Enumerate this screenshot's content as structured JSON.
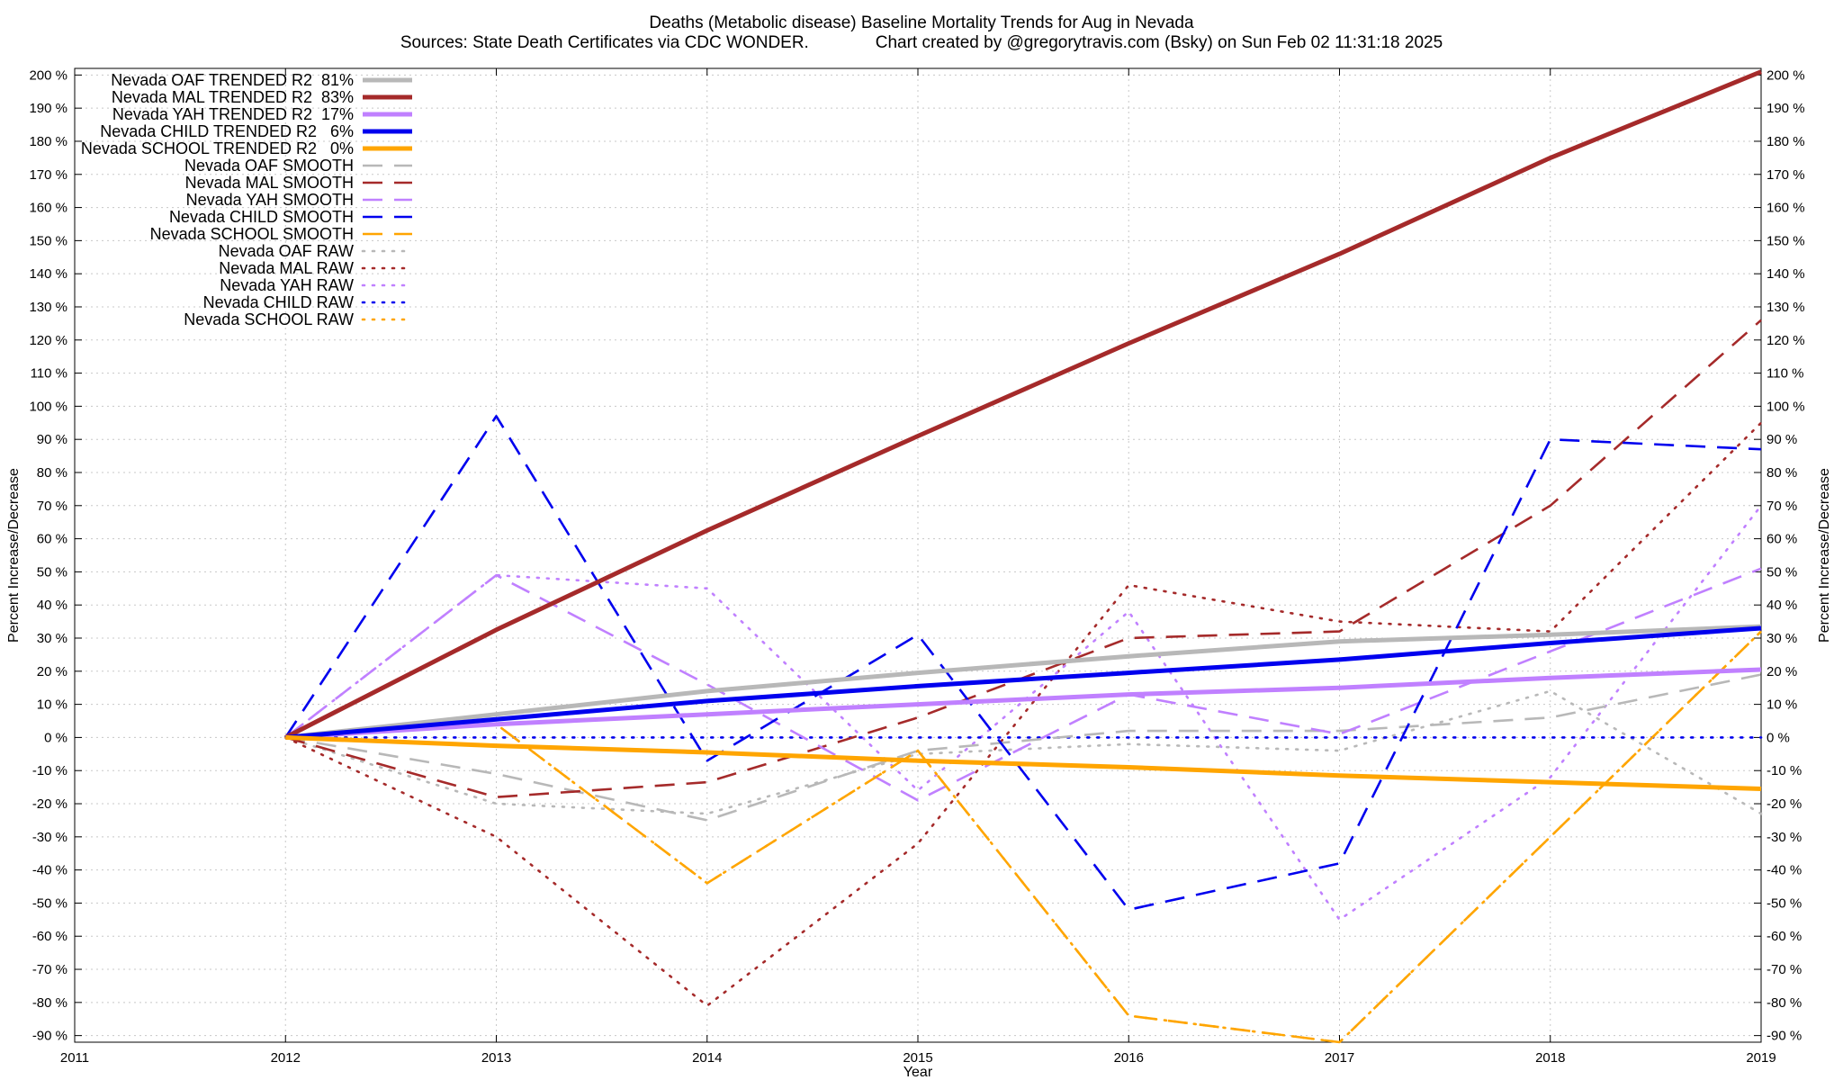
{
  "chart_data": {
    "type": "line",
    "title": "Deaths (Metabolic disease)  Baseline Mortality Trends for Aug in Nevada",
    "subtitle": "Sources: State Death Certificates via CDC WONDER.              Chart created by @gregorytravis.com (Bsky) on Sun Feb 02 11:31:18 2025",
    "xlabel": "Year",
    "ylabel": "Percent Increase/Decrease",
    "y2label": "Percent Increase/Decrease",
    "xlim": [
      2011,
      2019
    ],
    "ylim": [
      -92,
      202
    ],
    "x_ticks": [
      2011,
      2012,
      2013,
      2014,
      2015,
      2016,
      2017,
      2018,
      2019
    ],
    "x_tick_labels": [
      "2011",
      "2012",
      "2013",
      "2014",
      "2015",
      "2016",
      "2017",
      "2018",
      "2019"
    ],
    "y_ticks": [
      -90,
      -80,
      -70,
      -60,
      -50,
      -40,
      -30,
      -20,
      -10,
      0,
      10,
      20,
      30,
      40,
      50,
      60,
      70,
      80,
      90,
      100,
      110,
      120,
      130,
      140,
      150,
      160,
      170,
      180,
      190,
      200
    ],
    "y_tick_labels": [
      "-90 %",
      "-80 %",
      "-70 %",
      "-60 %",
      "-50 %",
      "-40 %",
      "-30 %",
      "-20 %",
      "-10 %",
      "0 %",
      "10 %",
      "20 %",
      "30 %",
      "40 %",
      "50 %",
      "60 %",
      "70 %",
      "80 %",
      "90 %",
      "100 %",
      "110 %",
      "120 %",
      "130 %",
      "140 %",
      "150 %",
      "160 %",
      "170 %",
      "180 %",
      "190 %",
      "200 %"
    ],
    "grid": true,
    "legend_position": "top-left",
    "series": [
      {
        "name": "Nevada OAF TRENDED R2  81%",
        "style": "solid",
        "color": "#b8b8b8",
        "x": [
          2012,
          2013,
          2014,
          2015,
          2016,
          2017,
          2018,
          2019
        ],
        "values": [
          0,
          7,
          14,
          19.5,
          24.5,
          29,
          31,
          33.5
        ]
      },
      {
        "name": "Nevada MAL TRENDED R2  83%",
        "style": "solid",
        "color": "#a52a2a",
        "x": [
          2012,
          2013,
          2014,
          2015,
          2016,
          2017,
          2018,
          2019
        ],
        "values": [
          0,
          32.5,
          62.5,
          91,
          119,
          146,
          175,
          201
        ]
      },
      {
        "name": "Nevada YAH TRENDED R2  17%",
        "style": "solid",
        "color": "#c080ff",
        "x": [
          2012,
          2013,
          2014,
          2015,
          2016,
          2017,
          2018,
          2019
        ],
        "values": [
          0,
          4,
          7,
          10,
          13,
          15,
          18,
          20.5
        ]
      },
      {
        "name": "Nevada CHILD TRENDED R2   6%",
        "style": "solid",
        "color": "#0000ee",
        "x": [
          2012,
          2013,
          2014,
          2015,
          2016,
          2017,
          2018,
          2019
        ],
        "values": [
          0,
          5.5,
          11,
          15.5,
          19.5,
          23.5,
          28.5,
          33
        ]
      },
      {
        "name": "Nevada SCHOOL TRENDED R2   0%",
        "style": "solid",
        "color": "#ffa500",
        "x": [
          2012,
          2013,
          2014,
          2015,
          2016,
          2017,
          2018,
          2019
        ],
        "values": [
          0,
          -2.5,
          -4.5,
          -7,
          -9,
          -11.5,
          -13.5,
          -15.5
        ]
      },
      {
        "name": "Nevada OAF SMOOTH",
        "style": "dashed",
        "color": "#b8b8b8",
        "x": [
          2012,
          2013,
          2014,
          2015,
          2016,
          2017,
          2018,
          2019
        ],
        "values": [
          0,
          -11,
          -25,
          -4,
          2,
          2,
          6,
          19
        ]
      },
      {
        "name": "Nevada MAL SMOOTH",
        "style": "dashed",
        "color": "#a52a2a",
        "x": [
          2012,
          2013,
          2014,
          2015,
          2016,
          2017,
          2018,
          2019
        ],
        "values": [
          0,
          -18,
          -13.5,
          6,
          30,
          32,
          70,
          126
        ]
      },
      {
        "name": "Nevada YAH SMOOTH",
        "style": "dashed",
        "color": "#c080ff",
        "x": [
          2012,
          2013,
          2014,
          2015,
          2016,
          2017,
          2018,
          2019
        ],
        "values": [
          0,
          49,
          16,
          -19,
          13,
          1,
          26,
          51
        ]
      },
      {
        "name": "Nevada CHILD SMOOTH",
        "style": "dashed",
        "color": "#0000ee",
        "x": [
          2012,
          2013,
          2014,
          2015,
          2016,
          2017,
          2018,
          2019
        ],
        "values": [
          0,
          97,
          -7,
          31,
          -52,
          -38,
          90,
          87
        ]
      },
      {
        "name": "Nevada SCHOOL SMOOTH",
        "style": "dashed",
        "color": "#ffa500",
        "x": [
          2012,
          2013,
          2014,
          2015,
          2016,
          2017,
          2018,
          2019
        ],
        "values": [
          0,
          4,
          -44,
          -4,
          -84,
          -92,
          -30,
          32
        ]
      },
      {
        "name": "Nevada OAF RAW",
        "style": "dotted",
        "color": "#b8b8b8",
        "x": [
          2012,
          2013,
          2014,
          2015,
          2016,
          2017,
          2018,
          2019
        ],
        "values": [
          0,
          -20,
          -23,
          -5,
          -2,
          -4,
          14,
          -23
        ]
      },
      {
        "name": "Nevada MAL RAW",
        "style": "dotted",
        "color": "#a52a2a",
        "x": [
          2012,
          2013,
          2014,
          2015,
          2016,
          2017,
          2018,
          2019
        ],
        "values": [
          0,
          -30,
          -81,
          -32,
          46,
          35,
          32,
          95
        ]
      },
      {
        "name": "Nevada YAH RAW",
        "style": "dotted",
        "color": "#c080ff",
        "x": [
          2012,
          2013,
          2014,
          2015,
          2016,
          2017,
          2018,
          2019
        ],
        "values": [
          0,
          49,
          45,
          -16,
          38,
          -55,
          -12,
          70
        ]
      },
      {
        "name": "Nevada CHILD RAW",
        "style": "dotted",
        "color": "#0000ee",
        "x": [
          2012,
          2013,
          2014,
          2015,
          2016,
          2017,
          2018,
          2019
        ],
        "values": [
          0,
          0,
          0,
          0,
          0,
          0,
          0,
          0
        ]
      },
      {
        "name": "Nevada SCHOOL RAW",
        "style": "dotted",
        "color": "#ffa500",
        "x": [
          2012,
          2013,
          2014,
          2015,
          2016,
          2017,
          2018,
          2019
        ],
        "values": [
          0,
          4,
          -44,
          -4,
          -84,
          -92,
          -30,
          32
        ]
      }
    ]
  }
}
